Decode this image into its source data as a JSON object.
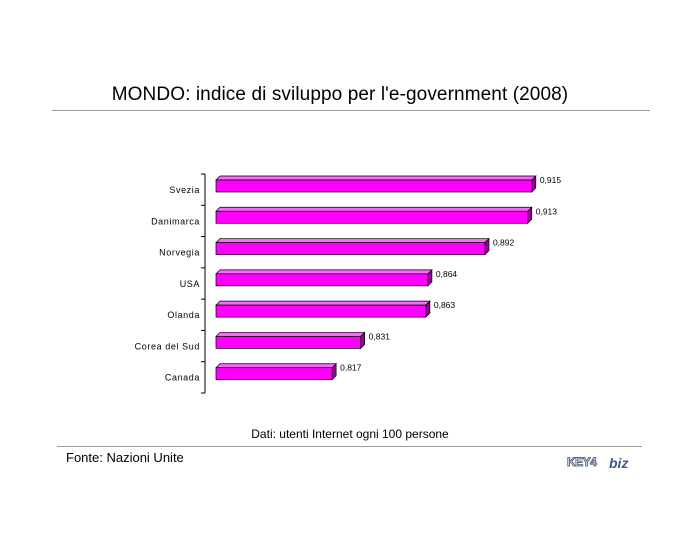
{
  "title": "MONDO: indice di sviluppo per l'e-government (2008)",
  "note": "Dati: utenti Internet ogni 100 persone",
  "source": "Fonte: Nazioni Unite",
  "logo": {
    "text_key": "KEY4",
    "text_biz": "biz"
  },
  "colors": {
    "bar_front": "#ff00ff",
    "bar_top": "#ff66ff",
    "bar_side": "#990099",
    "bar_outline": "#000000",
    "axis": "#000000"
  },
  "chart_data": {
    "type": "bar",
    "orientation": "horizontal",
    "title": "MONDO: indice di sviluppo per l'e-government (2008)",
    "categories": [
      "Svezia",
      "Danimarca",
      "Norvegia",
      "USA",
      "Olanda",
      "Corea del Sud",
      "Canada"
    ],
    "values": [
      0.915,
      0.913,
      0.892,
      0.864,
      0.863,
      0.831,
      0.817
    ],
    "value_labels": [
      "0,915",
      "0,913",
      "0,892",
      "0,864",
      "0,863",
      "0,831",
      "0,817"
    ],
    "xlim": [
      0.76,
      0.92
    ],
    "grid": false,
    "style": "3d"
  }
}
